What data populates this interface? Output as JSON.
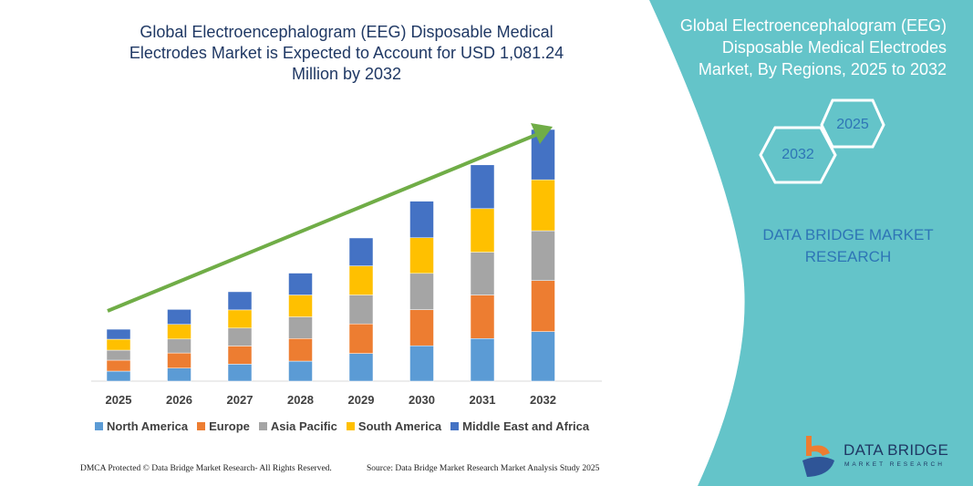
{
  "title": "Global Electroencephalogram (EEG) Disposable Medical Electrodes Market is Expected to Account for USD 1,081.24 Million by 2032",
  "side_panel": {
    "title": "Global Electroencephalogram (EEG) Disposable Medical Electrodes Market, By Regions, 2025 to 2032",
    "hex_2025": "2025",
    "hex_2032": "2032",
    "brand": "DATA BRIDGE MARKET RESEARCH",
    "logo_text": "DATA BRIDGE",
    "logo_subtext": "MARKET RESEARCH",
    "color": "#64c4c9"
  },
  "footer": {
    "copyright": "DMCA Protected © Data Bridge Market Research- All Rights Reserved.",
    "source": "Source: Data Bridge Market Research Market Analysis Study 2025"
  },
  "chart_data": {
    "type": "bar",
    "stacked": true,
    "categories": [
      "2025",
      "2026",
      "2027",
      "2028",
      "2029",
      "2030",
      "2031",
      "2032"
    ],
    "series": [
      {
        "name": "North America",
        "color": "#5b9bd5",
        "values": [
          43,
          56,
          73,
          86,
          119,
          152,
          183,
          213
        ]
      },
      {
        "name": "Europe",
        "color": "#ed7d31",
        "values": [
          47,
          65,
          78,
          97,
          127,
          155,
          187,
          219
        ]
      },
      {
        "name": "Asia Pacific",
        "color": "#a5a5a5",
        "values": [
          43,
          60,
          77,
          93,
          124,
          156,
          184,
          214
        ]
      },
      {
        "name": "South America",
        "color": "#ffc000",
        "values": [
          47,
          63,
          78,
          94,
          125,
          153,
          187,
          219
        ]
      },
      {
        "name": "Middle East and Africa",
        "color": "#4472c4",
        "values": [
          43,
          64,
          78,
          94,
          120,
          157,
          188,
          216
        ]
      }
    ],
    "unit": "USD Million (approximate, no axis shown)",
    "legend": "bottom",
    "grid": false,
    "trend_arrow_color": "#70ad47"
  }
}
